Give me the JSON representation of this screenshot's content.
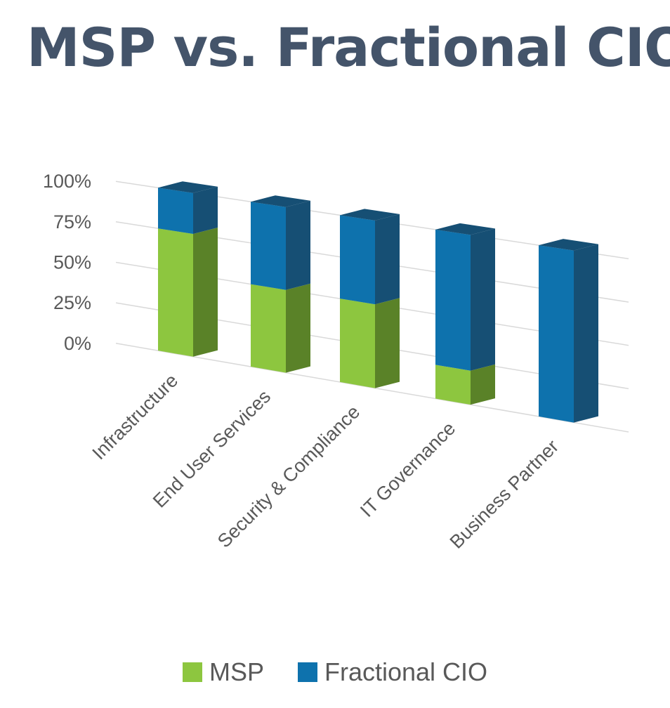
{
  "chart_data": {
    "type": "bar",
    "variant": "stacked-100-3d",
    "title": "MSP vs. Fractional CIO",
    "xlabel": "",
    "ylabel": "",
    "ylim": [
      0,
      100
    ],
    "yticks": [
      "0%",
      "25%",
      "50%",
      "75%",
      "100%"
    ],
    "grid": true,
    "legend_position": "bottom",
    "categories": [
      "Infrastructure",
      "End User Services",
      "Security & Compliance",
      "IT Governance",
      "Business Partner"
    ],
    "series": [
      {
        "name": "MSP",
        "color": "#8dc63f",
        "side_color": "#5a8228",
        "values": [
          75,
          50,
          50,
          20,
          0
        ]
      },
      {
        "name": "Fractional CIO",
        "color": "#0e72ad",
        "side_color": "#164f74",
        "values": [
          25,
          50,
          50,
          80,
          100
        ]
      }
    ]
  }
}
